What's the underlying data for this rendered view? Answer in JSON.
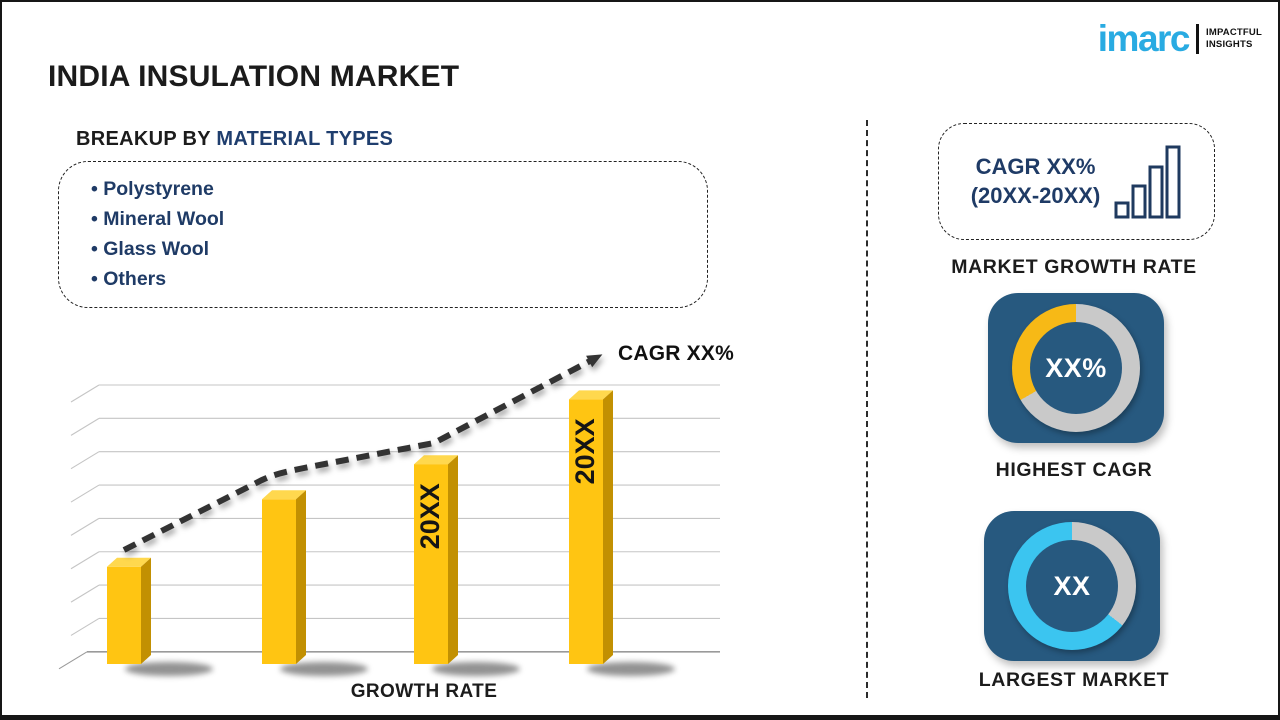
{
  "header": {
    "title": "INDIA INSULATION MARKET"
  },
  "logo": {
    "brand": "imarc",
    "tagline1": "IMPACTFUL",
    "tagline2": "INSIGHTS",
    "brand_color": "#29ABE2"
  },
  "breakup": {
    "heading_prefix": "BREAKUP BY ",
    "heading_highlight": "MATERIAL TYPES",
    "items": [
      "Polystyrene",
      "Mineral Wool",
      "Glass Wool",
      "Others"
    ]
  },
  "chart_data": {
    "type": "bar",
    "title": "",
    "xlabel": "GROWTH RATE",
    "ylabel": "",
    "categories": [
      "",
      "",
      "20XX",
      "20XX"
    ],
    "values": [
      36,
      61,
      74,
      98
    ],
    "ylim": [
      0,
      100
    ],
    "grid": true,
    "gridline_count": 9,
    "legend": "none",
    "trend_annotation": "CAGR XX%",
    "trend_style": "dashed-arrow-up",
    "bar_color": "#FFC512",
    "bar_top_color": "#FFD84E",
    "bar_side_color": "#C29002"
  },
  "right_panel": {
    "growth_box": {
      "line1": "CAGR XX%",
      "line2": "(20XX-20XX)"
    },
    "market_growth_rate_label": "MARKET GROWTH RATE",
    "highest_cagr": {
      "value": "XX%",
      "label": "HIGHEST CAGR",
      "ring": {
        "base": "#C9C9C9",
        "segment": "#F7B916",
        "segment_start_deg": 240,
        "segment_end_deg": 360
      }
    },
    "largest_market": {
      "value": "XX",
      "label": "LARGEST MARKET",
      "ring": {
        "base": "#C9C9C9",
        "segment": "#3BC5F0",
        "segment_start_deg": 128,
        "segment_end_deg": 360
      }
    },
    "card_color": "#27597F"
  }
}
